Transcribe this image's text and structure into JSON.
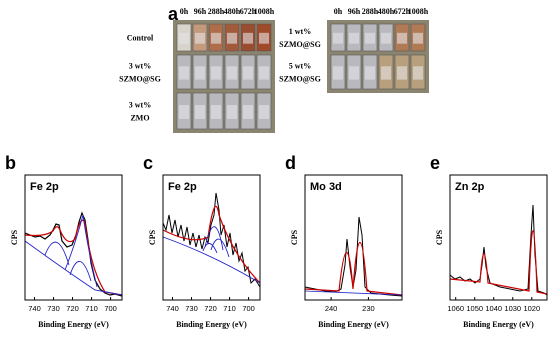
{
  "panel_a": {
    "label": "a",
    "left": {
      "times": [
        "0h",
        "96h",
        "288h",
        "480h",
        "672h",
        "1008h"
      ],
      "rows": [
        {
          "lines": [
            "Control"
          ]
        },
        {
          "lines": [
            "3 wt%",
            "SZMO@SG"
          ]
        },
        {
          "lines": [
            "3 wt%",
            "ZMO"
          ]
        }
      ]
    },
    "right": {
      "times": [
        "0h",
        "96h",
        "288h",
        "480h",
        "672h",
        "1008h"
      ],
      "rows": [
        {
          "lines": [
            "1 wt%",
            "SZMO@SG"
          ]
        },
        {
          "lines": [
            "5 wt%",
            "SZMO@SG"
          ]
        }
      ]
    }
  },
  "spectra": [
    {
      "label": "b",
      "title": "Fe 2p",
      "xlabel": "Binding Energy (eV)",
      "ylabel": "CPS",
      "xlim": [
        745,
        694
      ],
      "xticks": [
        740,
        730,
        720,
        710,
        700
      ]
    },
    {
      "label": "c",
      "title": "Fe 2p",
      "xlabel": "Binding Energy (eV)",
      "ylabel": "CPS",
      "xlim": [
        745,
        694
      ],
      "xticks": [
        740,
        730,
        720,
        710,
        700
      ]
    },
    {
      "label": "d",
      "title": "Mo 3d",
      "xlabel": "Binding Energy (eV)",
      "ylabel": "CPS",
      "xlim": [
        247,
        221
      ],
      "xticks": [
        240,
        230
      ]
    },
    {
      "label": "e",
      "title": "Zn 2p",
      "xlabel": "Binding Energy (eV)",
      "ylabel": "CPS",
      "xlim": [
        1063,
        1012
      ],
      "xticks": [
        1060,
        1050,
        1040,
        1030,
        1020
      ]
    }
  ]
}
